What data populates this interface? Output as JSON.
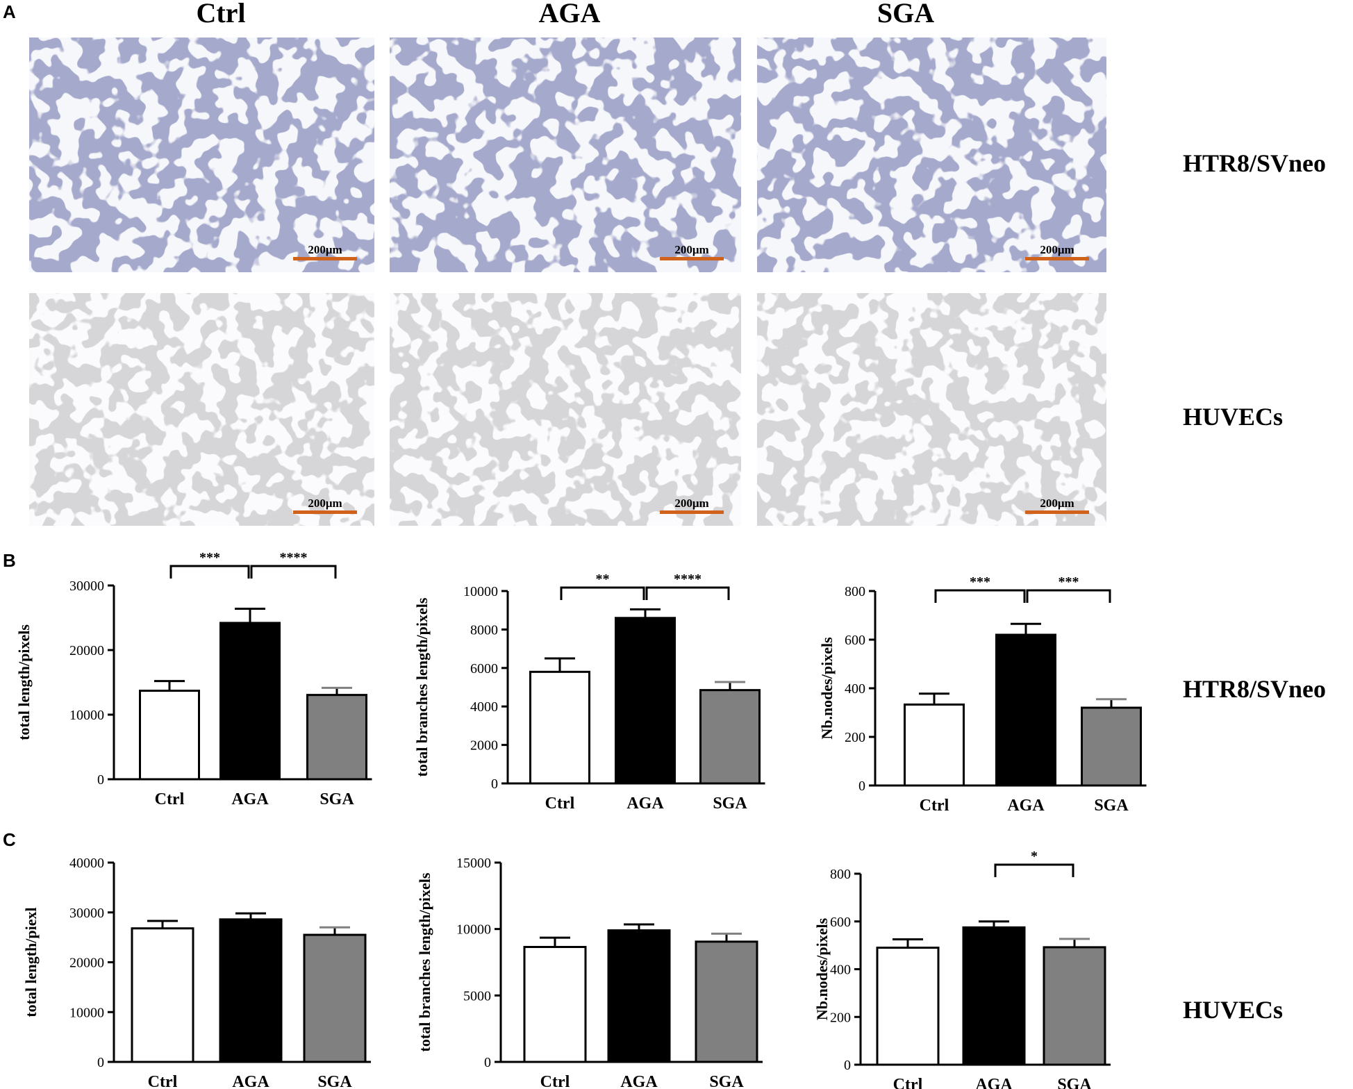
{
  "panel_labels": {
    "A": "A",
    "B": "B",
    "C": "C"
  },
  "column_headers": [
    "Ctrl",
    "AGA",
    "SGA"
  ],
  "row_labels": [
    "HTR8/SVneo",
    "HUVECs"
  ],
  "colors": {
    "ctrl_fill": "#ffffff",
    "aga_fill": "#000000",
    "sga_fill": "#808080",
    "htr8_micrograph_bg": "#a5a9cc",
    "huvec_micrograph_bg": "#d6d6d8",
    "scale_bar": "#d1621b"
  },
  "micrographs": [
    {
      "row": "HTR8/SVneo",
      "group": "Ctrl",
      "scale_label": "200μm"
    },
    {
      "row": "HTR8/SVneo",
      "group": "AGA",
      "scale_label": "200μm"
    },
    {
      "row": "HTR8/SVneo",
      "group": "SGA",
      "scale_label": "200μm"
    },
    {
      "row": "HUVECs",
      "group": "Ctrl",
      "scale_label": "200μm"
    },
    {
      "row": "HUVECs",
      "group": "AGA",
      "scale_label": "200μm"
    },
    {
      "row": "HUVECs",
      "group": "SGA",
      "scale_label": "200μm"
    }
  ],
  "chart_data": [
    {
      "type": "bar",
      "panel": "B",
      "cell_line": "HTR8/SVneo",
      "categories": [
        "Ctrl",
        "AGA",
        "SGA"
      ],
      "values": [
        13700,
        24200,
        13050
      ],
      "errors": [
        1500,
        2200,
        1100
      ],
      "ylabel": "total length/pixels",
      "ylim": [
        0,
        30000
      ],
      "yticks": [
        "0",
        "10000",
        "20000",
        "30000"
      ],
      "significance": [
        {
          "from": "Ctrl",
          "to": "AGA",
          "label": "***"
        },
        {
          "from": "AGA",
          "to": "SGA",
          "label": "****"
        }
      ]
    },
    {
      "type": "bar",
      "panel": "B",
      "cell_line": "HTR8/SVneo",
      "categories": [
        "Ctrl",
        "AGA",
        "SGA"
      ],
      "values": [
        5800,
        8600,
        4850
      ],
      "errors": [
        700,
        450,
        420
      ],
      "ylabel": "total branches length/pixels",
      "ylim": [
        0,
        10000
      ],
      "yticks": [
        "0",
        "2000",
        "4000",
        "6000",
        "8000",
        "10000"
      ],
      "significance": [
        {
          "from": "Ctrl",
          "to": "AGA",
          "label": "**"
        },
        {
          "from": "AGA",
          "to": "SGA",
          "label": "****"
        }
      ]
    },
    {
      "type": "bar",
      "panel": "B",
      "cell_line": "HTR8/SVneo",
      "categories": [
        "Ctrl",
        "AGA",
        "SGA"
      ],
      "values": [
        333,
        620,
        320
      ],
      "errors": [
        45,
        45,
        35
      ],
      "ylabel": "Nb.nodes/pixels",
      "ylim": [
        0,
        800
      ],
      "yticks": [
        "0",
        "200",
        "400",
        "600",
        "800"
      ],
      "significance": [
        {
          "from": "Ctrl",
          "to": "AGA",
          "label": "***"
        },
        {
          "from": "AGA",
          "to": "SGA",
          "label": "***"
        }
      ]
    },
    {
      "type": "bar",
      "panel": "C",
      "cell_line": "HUVECs",
      "categories": [
        "Ctrl",
        "AGA",
        "SGA"
      ],
      "values": [
        26800,
        28600,
        25500
      ],
      "errors": [
        1500,
        1200,
        1500
      ],
      "ylabel": "total length/piexl",
      "ylim": [
        0,
        40000
      ],
      "yticks": [
        "0",
        "10000",
        "20000",
        "30000",
        "40000"
      ],
      "significance": []
    },
    {
      "type": "bar",
      "panel": "C",
      "cell_line": "HUVECs",
      "categories": [
        "Ctrl",
        "AGA",
        "SGA"
      ],
      "values": [
        8650,
        9900,
        9050
      ],
      "errors": [
        700,
        450,
        600
      ],
      "ylabel": "total branches length/pixels",
      "ylim": [
        0,
        15000
      ],
      "yticks": [
        "0",
        "5000",
        "10000",
        "15000"
      ],
      "significance": []
    },
    {
      "type": "bar",
      "panel": "C",
      "cell_line": "HUVECs",
      "categories": [
        "Ctrl",
        "AGA",
        "SGA"
      ],
      "values": [
        490,
        575,
        492
      ],
      "errors": [
        35,
        25,
        35
      ],
      "ylabel": "Nb.nodes/pixels",
      "ylim": [
        0,
        800
      ],
      "yticks": [
        "0",
        "200",
        "400",
        "600",
        "800"
      ],
      "significance": [
        {
          "from": "AGA",
          "to": "SGA",
          "label": "*"
        }
      ]
    }
  ]
}
